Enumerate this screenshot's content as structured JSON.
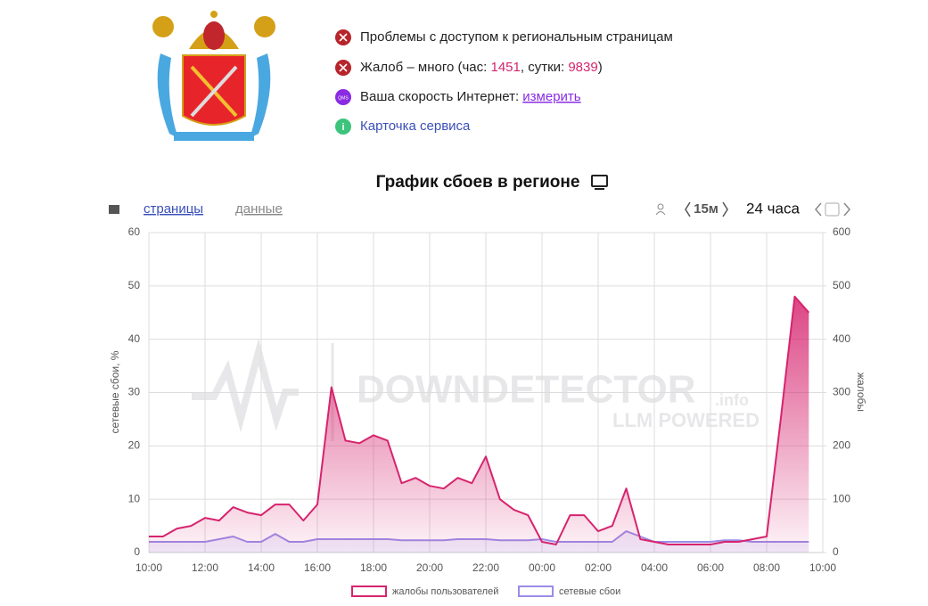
{
  "status": {
    "access": "Проблемы с доступом к региональным страницам",
    "complaints_prefix": "Жалоб – много (час: ",
    "hour": 1451,
    "day_sep": ", сутки: ",
    "day": 9839,
    "close": ")",
    "qms": "QMS",
    "speed": "Ваша скорость Интернет: ",
    "measure": "измерить",
    "card": "Карточка сервиса"
  },
  "controls": {
    "pages": "страницы",
    "data": "данные",
    "interval": "15м",
    "period": "24 часа"
  },
  "chart_data": {
    "type": "line",
    "title": "График сбоев в регионе",
    "y_label": "сетевые сбои, %",
    "y2_label": "жалобы",
    "watermark": {
      "brand": "DOWNDETECTOR",
      "suffix": ".info",
      "sub": "LLM POWERED"
    },
    "categories": [
      "10:00",
      null,
      null,
      null,
      "12:00",
      null,
      null,
      null,
      "14:00",
      null,
      null,
      null,
      "16:00",
      null,
      null,
      null,
      "18:00",
      null,
      null,
      null,
      "20:00",
      null,
      null,
      null,
      "22:00",
      null,
      null,
      null,
      "00:00",
      null,
      null,
      null,
      "02:00",
      null,
      null,
      null,
      "04:00",
      null,
      null,
      null,
      "06:00",
      null,
      null,
      null,
      "08:00",
      null,
      null,
      null,
      "10:00"
    ],
    "series": [
      {
        "name": "жалобы пользователей",
        "color": "#d6246e",
        "axis": "y2",
        "values": [
          30,
          30,
          45,
          50,
          65,
          60,
          85,
          75,
          70,
          90,
          90,
          60,
          90,
          310,
          210,
          205,
          220,
          210,
          130,
          140,
          125,
          120,
          140,
          130,
          180,
          100,
          80,
          70,
          20,
          15,
          70,
          70,
          40,
          50,
          120,
          25,
          20,
          15,
          15,
          15,
          15,
          20,
          20,
          25,
          30,
          250,
          480,
          450,
          null
        ]
      },
      {
        "name": "сетевые сбои",
        "color": "#9b8ce8",
        "values": [
          2,
          2,
          2,
          2,
          2,
          2.5,
          3,
          2,
          2,
          3.5,
          2,
          2,
          2.5,
          2.5,
          2.5,
          2.5,
          2.5,
          2.5,
          2.3,
          2.3,
          2.3,
          2.3,
          2.5,
          2.5,
          2.5,
          2.3,
          2.3,
          2.3,
          2.5,
          2,
          2,
          2,
          2,
          2,
          4,
          3,
          2,
          2,
          2,
          2,
          2,
          2.3,
          2.3,
          2,
          2,
          2,
          2,
          2,
          null
        ]
      }
    ],
    "ylim": [
      0,
      60
    ],
    "yticks": [
      0,
      10,
      20,
      30,
      40,
      50,
      60
    ],
    "y2lim": [
      0,
      600
    ],
    "y2ticks": [
      0,
      100,
      200,
      300,
      400,
      500,
      600
    ],
    "grid": true,
    "legend": "bottom"
  }
}
